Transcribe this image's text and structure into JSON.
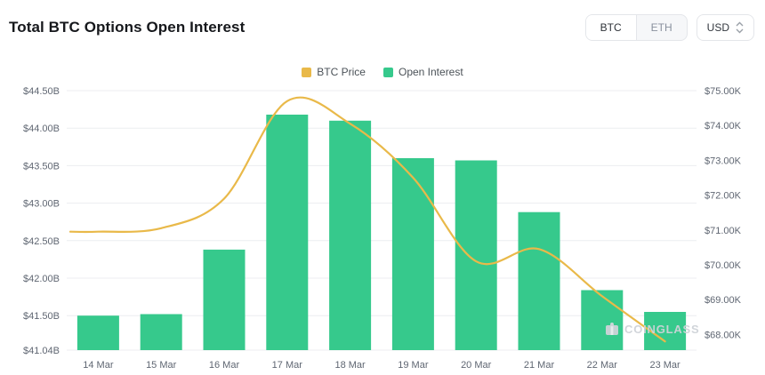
{
  "header": {
    "title": "Total BTC Options Open Interest",
    "coin_toggle": [
      {
        "label": "BTC",
        "selected": true
      },
      {
        "label": "ETH",
        "selected": false
      }
    ],
    "currency_select": {
      "value": "USD"
    }
  },
  "legend": [
    {
      "label": "BTC Price",
      "color": "#e9b949"
    },
    {
      "label": "Open Interest",
      "color": "#36c98c"
    }
  ],
  "watermark": "COINGLASS",
  "chart_data": {
    "type": "bar",
    "title": "Total BTC Options Open Interest",
    "categories": [
      "14 Mar",
      "15 Mar",
      "16 Mar",
      "17 Mar",
      "18 Mar",
      "19 Mar",
      "20 Mar",
      "21 Mar",
      "22 Mar",
      "23 Mar"
    ],
    "series": [
      {
        "name": "Open Interest",
        "type": "bar",
        "axis": "left",
        "unit": "$B",
        "color": "#36c98c",
        "values": [
          41.5,
          41.52,
          42.38,
          44.18,
          44.1,
          43.6,
          43.57,
          42.88,
          41.84,
          41.55
        ]
      },
      {
        "name": "BTC Price",
        "type": "line",
        "axis": "right",
        "unit": "$K",
        "color": "#e9b949",
        "values": [
          70.95,
          71.05,
          71.9,
          74.7,
          74.05,
          72.5,
          70.1,
          70.45,
          69.1,
          67.8
        ]
      }
    ],
    "left_axis": {
      "min": 41.04,
      "max": 44.5,
      "ticks": [
        "$44.50B",
        "$44.00B",
        "$43.50B",
        "$43.00B",
        "$42.50B",
        "$42.00B",
        "$41.50B",
        "$41.04B"
      ],
      "tick_values": [
        44.5,
        44.0,
        43.5,
        43.0,
        42.5,
        42.0,
        41.5,
        41.04
      ]
    },
    "right_axis": {
      "min": 67.55,
      "max": 75.0,
      "ticks": [
        "$75.00K",
        "$74.00K",
        "$73.00K",
        "$72.00K",
        "$71.00K",
        "$70.00K",
        "$69.00K",
        "$68.00K"
      ],
      "tick_values": [
        75,
        74,
        73,
        72,
        71,
        70,
        69,
        68
      ]
    },
    "grid": true,
    "legend_position": "top"
  }
}
